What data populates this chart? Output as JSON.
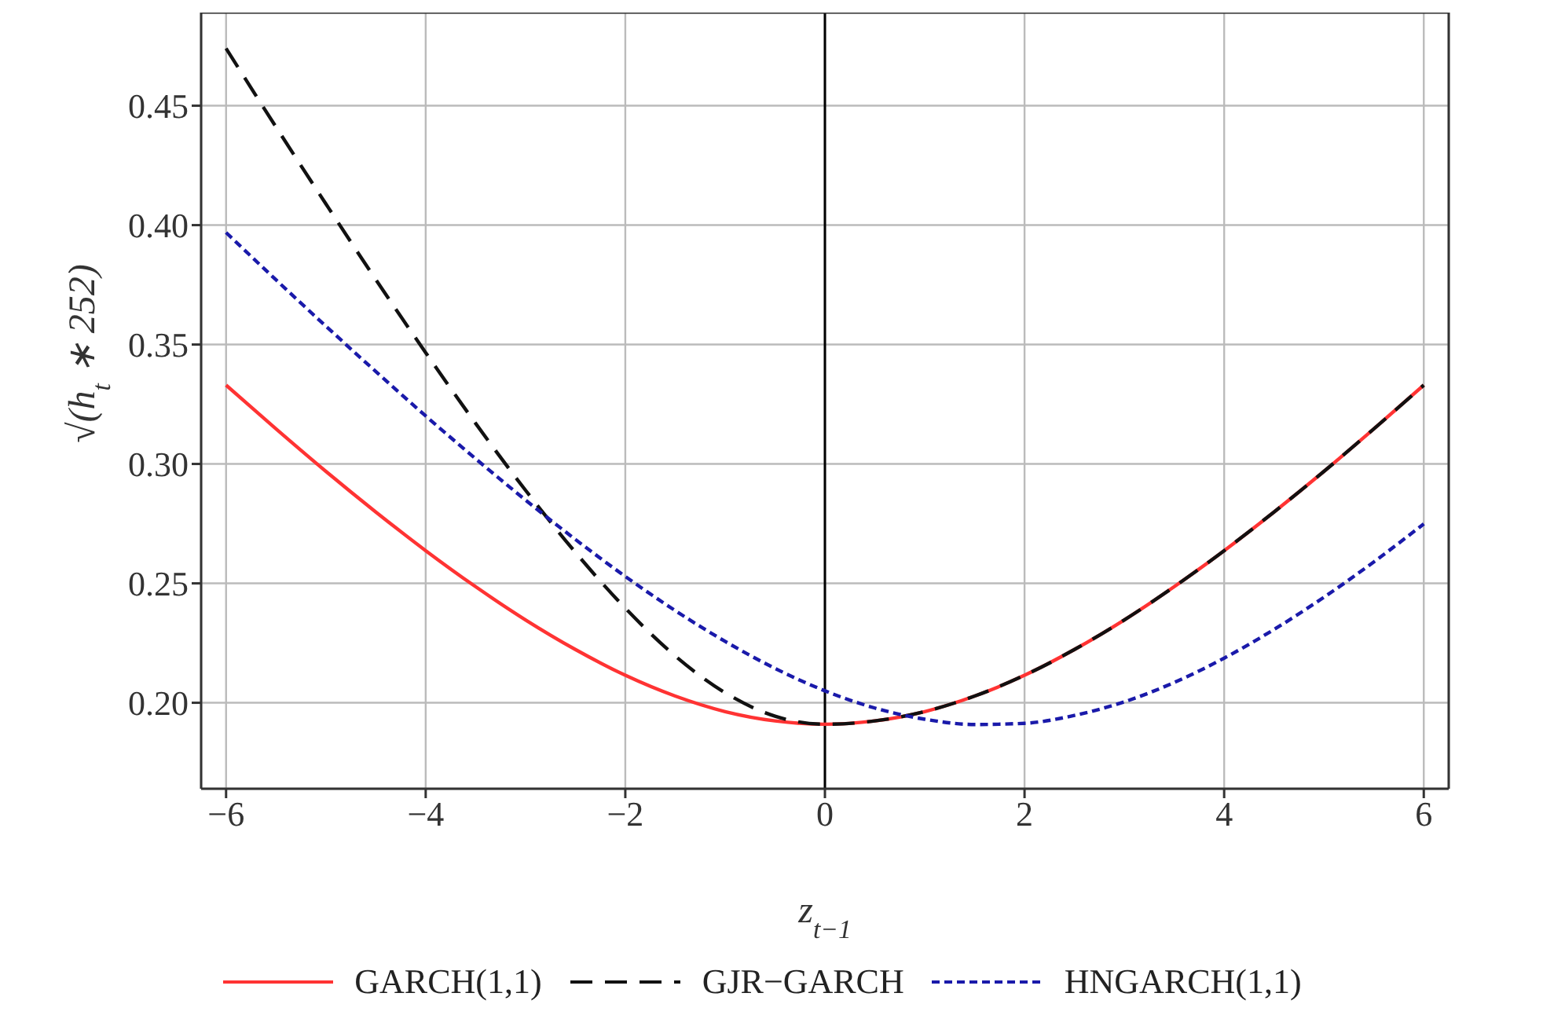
{
  "chart_data": {
    "type": "line",
    "xlabel": "z$_{t−1}$",
    "ylabel": "√(h$_{t}$ ∗ 252)",
    "x": [
      -6,
      -5.5,
      -5,
      -4.5,
      -4,
      -3.5,
      -3,
      -2.5,
      -2,
      -1.5,
      -1,
      -0.5,
      0,
      0.5,
      1,
      1.5,
      2,
      2.5,
      3,
      3.5,
      4,
      4.5,
      5,
      5.5,
      6
    ],
    "series": [
      {
        "name": "GARCH(1,1)",
        "color": "#ff3333",
        "line_style": "solid",
        "values": [
          0.333,
          0.3147,
          0.2969,
          0.2799,
          0.2637,
          0.2486,
          0.2347,
          0.2223,
          0.2115,
          0.2028,
          0.1963,
          0.1924,
          0.191,
          0.1924,
          0.1963,
          0.2028,
          0.2115,
          0.2223,
          0.2347,
          0.2486,
          0.2637,
          0.2799,
          0.2969,
          0.3147,
          0.333
        ]
      },
      {
        "name": "GJR−GARCH",
        "color": "#111111",
        "line_style": "dashed",
        "values": [
          0.474,
          0.4411,
          0.4089,
          0.3772,
          0.3466,
          0.317,
          0.289,
          0.263,
          0.2396,
          0.2196,
          0.2042,
          0.1944,
          0.191,
          0.1924,
          0.1963,
          0.2028,
          0.2115,
          0.2223,
          0.2347,
          0.2486,
          0.2637,
          0.2799,
          0.2969,
          0.3147,
          0.333
        ]
      },
      {
        "name": "HNGARCH(1,1)",
        "color": "#1a1aaa",
        "line_style": "dotted",
        "values": [
          0.3969,
          0.3771,
          0.3577,
          0.3387,
          0.3201,
          0.3022,
          0.2849,
          0.2684,
          0.2529,
          0.2386,
          0.2257,
          0.2144,
          0.205,
          0.1978,
          0.1931,
          0.1909,
          0.1914,
          0.1947,
          0.2004,
          0.2085,
          0.2187,
          0.2307,
          0.2442,
          0.259,
          0.2749
        ]
      }
    ],
    "xlim": [
      -6.25,
      6.25
    ],
    "xticks": [
      -6,
      -4,
      -2,
      0,
      2,
      4,
      6
    ],
    "ylim": [
      0.164,
      0.489
    ],
    "yticks": [
      {
        "value": 0.2,
        "label": "0.20"
      },
      0.25,
      {
        "value": 0.3,
        "label": "0.30"
      },
      0.35,
      {
        "value": 0.4,
        "label": "0.40"
      },
      0.45
    ],
    "ref_lines": [
      {
        "axis": "x",
        "value": 0,
        "color": "#000000"
      }
    ],
    "grid": true,
    "legend": "bottom",
    "marker": "none"
  }
}
